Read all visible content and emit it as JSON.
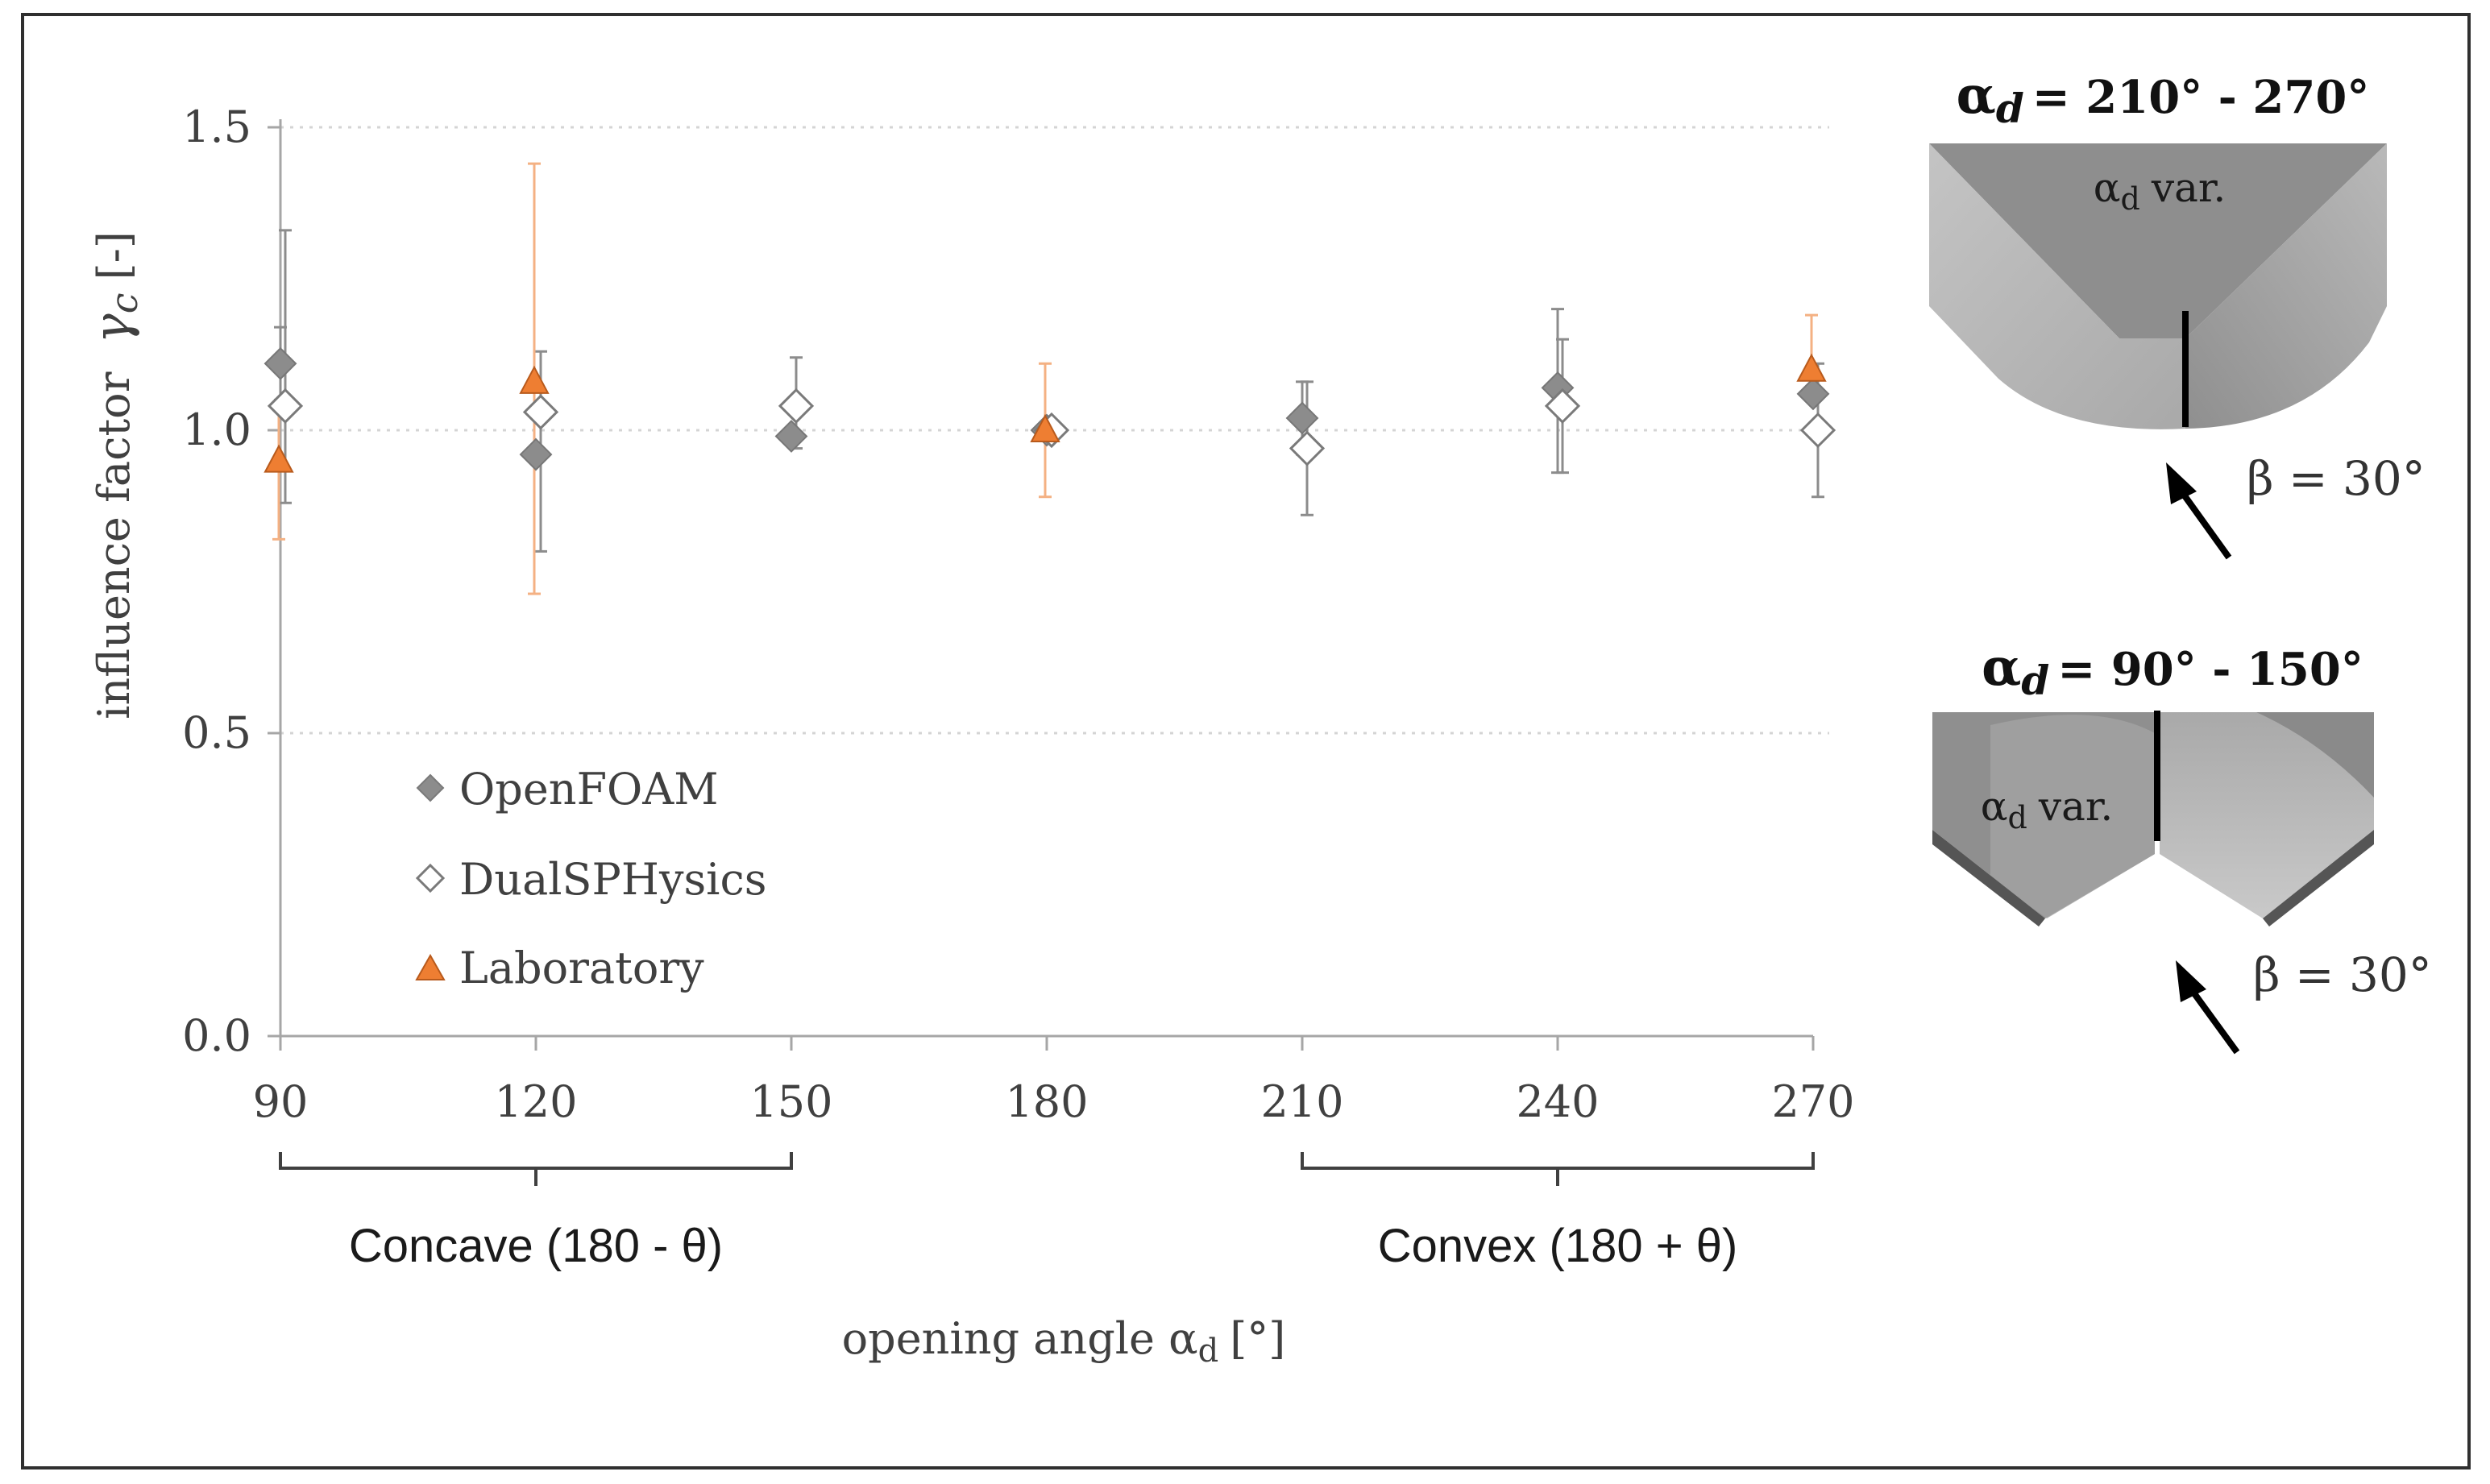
{
  "chart_data": {
    "type": "scatter",
    "x": [
      90,
      120,
      150,
      180,
      210,
      240,
      270
    ],
    "xticks": [
      "90",
      "120",
      "150",
      "180",
      "210",
      "240",
      "270"
    ],
    "yticks": [
      "0.0",
      "0.5",
      "1.0",
      "1.5"
    ],
    "ylim": [
      0,
      1.5
    ],
    "xlim": [
      90,
      270
    ],
    "ylabel": "influence factor",
    "ylabel_symbol": "γ",
    "ylabel_sub": "c",
    "ylabel_unit": "[-]",
    "xlabel": "opening angle α",
    "xlabel_sub": "d",
    "xlabel_unit": "[°]",
    "grid": "horizontal dotted",
    "legend_position": "bottom-left",
    "series": [
      {
        "name": "OpenFOAM",
        "marker": "diamond-filled",
        "color": "#8c8c8c",
        "x": [
          90,
          120,
          150,
          180,
          210,
          240,
          270
        ],
        "y": [
          1.11,
          0.96,
          0.99,
          1.0,
          1.02,
          1.07,
          1.06
        ],
        "err_low": [
          1.05,
          null,
          null,
          null,
          0.96,
          0.93,
          null
        ],
        "err_high": [
          1.17,
          null,
          null,
          null,
          1.08,
          1.2,
          null
        ]
      },
      {
        "name": "DualSPHysics",
        "marker": "diamond-open",
        "color": "#8c8c8c",
        "x": [
          90,
          120,
          150,
          180,
          210,
          240,
          270
        ],
        "y": [
          1.04,
          1.03,
          1.04,
          1.0,
          0.97,
          1.04,
          1.0
        ],
        "err_low": [
          0.88,
          0.8,
          0.97,
          null,
          0.86,
          0.93,
          0.89
        ],
        "err_high": [
          1.33,
          1.13,
          1.12,
          null,
          1.08,
          1.15,
          1.11
        ]
      },
      {
        "name": "Laboratory",
        "marker": "triangle",
        "color": "#ee7e32",
        "x": [
          90,
          120,
          180,
          270
        ],
        "y": [
          0.95,
          1.08,
          1.0,
          1.1
        ],
        "err_low": [
          0.82,
          0.73,
          0.89,
          1.06
        ],
        "err_high": [
          1.04,
          1.44,
          1.11,
          1.19
        ]
      }
    ],
    "annotations": {
      "concave_label": "Concave (180 - θ)",
      "convex_label": "Convex (180 + θ)",
      "concave_range": [
        90,
        150
      ],
      "convex_range": [
        210,
        270
      ]
    }
  },
  "insets": {
    "top": {
      "title_symbol": "α",
      "title_sub": "d",
      "title_range": "= 210° - 270°",
      "inner_symbol": "α",
      "inner_sub": "d",
      "inner_text": "var.",
      "beta_text": "β = 30°"
    },
    "bottom": {
      "title_symbol": "α",
      "title_sub": "d",
      "title_range": "= 90° - 150°",
      "inner_symbol": "α",
      "inner_sub": "d",
      "inner_text": "var.",
      "beta_text": "β = 30°"
    }
  },
  "colors": {
    "gray_marker": "#8c8c8c",
    "orange": "#ee7e32",
    "axis": "#a6a6a6",
    "text": "#404040"
  }
}
